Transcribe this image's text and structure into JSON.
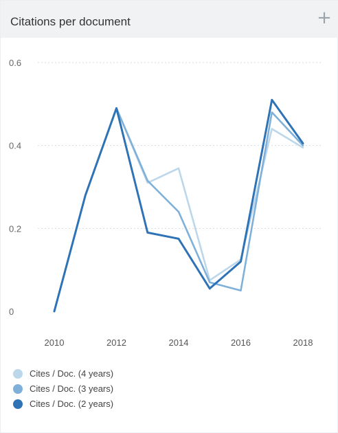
{
  "widget": {
    "title": "Citations per document",
    "add_label": "+"
  },
  "colors": {
    "header_bg": "#f1f2f4",
    "series_4y": "#bcd6ea",
    "series_3y": "#7fb0d9",
    "series_2y": "#2f73b5"
  },
  "chart_data": {
    "type": "line",
    "title": "Citations per document",
    "xlabel": "",
    "ylabel": "",
    "x": [
      2010,
      2011,
      2012,
      2013,
      2014,
      2015,
      2016,
      2017,
      2018
    ],
    "xticks": [
      "2010",
      "2012",
      "2014",
      "2016",
      "2018"
    ],
    "xlim": [
      2010,
      2018
    ],
    "yticks": [
      "0",
      "0.2",
      "0.4",
      "0.6"
    ],
    "ylim": [
      0,
      0.6
    ],
    "grid": true,
    "legend_position": "bottom-left",
    "series": [
      {
        "name": "Cites / Doc. (4 years)",
        "color": "#bcd6ea",
        "values": [
          0,
          0.28,
          0.49,
          0.31,
          0.345,
          0.075,
          0.125,
          0.44,
          0.395
        ]
      },
      {
        "name": "Cites / Doc. (3 years)",
        "color": "#7fb0d9",
        "values": [
          0,
          0.28,
          0.49,
          0.315,
          0.24,
          0.07,
          0.05,
          0.48,
          0.4
        ]
      },
      {
        "name": "Cites / Doc. (2 years)",
        "color": "#2f73b5",
        "values": [
          0,
          0.28,
          0.49,
          0.19,
          0.175,
          0.055,
          0.12,
          0.51,
          0.405
        ]
      }
    ]
  }
}
